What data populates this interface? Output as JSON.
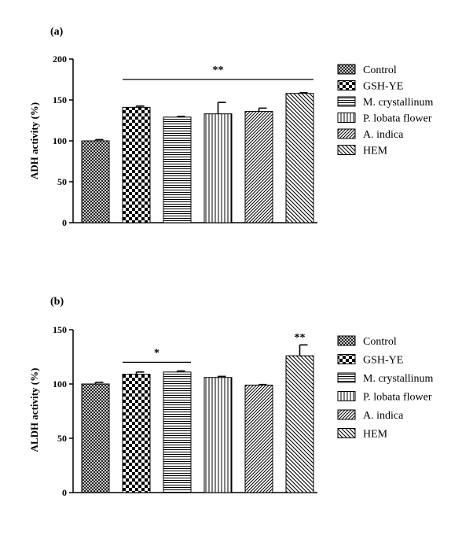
{
  "patterns": [
    "crosshatch-fine",
    "checker",
    "horizontal-lines",
    "vertical-lines",
    "diagonal-fine",
    "diagonal-back"
  ],
  "colors": {
    "ink": "#000000",
    "background": "#ffffff"
  },
  "chart_data": [
    {
      "type": "bar",
      "panel_label": "(a)",
      "title": "",
      "xlabel": "",
      "ylabel": "ADH activity (%)",
      "ylim": [
        0,
        200
      ],
      "yticks": [
        0,
        50,
        100,
        150,
        200
      ],
      "ytick_labels": [
        "0",
        "50",
        "100",
        "150",
        "200"
      ],
      "categories": [
        "Control",
        "GSH-YE",
        "M. crystallinum",
        "P. lobata flower",
        "A. indica",
        "HEM"
      ],
      "values": [
        100,
        141,
        129,
        133,
        136,
        158
      ],
      "errors": [
        1.5,
        1.5,
        0.8,
        14,
        4,
        0.8
      ],
      "legend": [
        "Control",
        "GSH-YE",
        "M. crystallinum",
        "P. lobata flower",
        "A. indica",
        "HEM"
      ],
      "legend_position": "right",
      "grid": false,
      "significance": [
        {
          "label": "**",
          "from_index": 1,
          "to_index": 5,
          "level": 175,
          "line": true
        }
      ]
    },
    {
      "type": "bar",
      "panel_label": "(b)",
      "title": "",
      "xlabel": "",
      "ylabel": "ALDH activity (%)",
      "ylim": [
        0,
        150
      ],
      "yticks": [
        0,
        50,
        100,
        150
      ],
      "ytick_labels": [
        "0",
        "50",
        "100",
        "150"
      ],
      "categories": [
        "Control",
        "GSH-YE",
        "M. crystallinum",
        "P. lobata flower",
        "A. indica",
        "HEM"
      ],
      "values": [
        100,
        109,
        111,
        106,
        99,
        126
      ],
      "errors": [
        1.5,
        2,
        1,
        1,
        0.5,
        10
      ],
      "legend": [
        "Control",
        "GSH-YE",
        "M. crystallinum",
        "P. lobata flower",
        "A. indica",
        "HEM"
      ],
      "legend_position": "right",
      "grid": false,
      "significance": [
        {
          "label": "*",
          "from_index": 1,
          "to_index": 2,
          "level": 120,
          "line": true
        },
        {
          "label": "**",
          "from_index": 5,
          "to_index": 5,
          "level": 140,
          "line": false
        }
      ]
    }
  ]
}
